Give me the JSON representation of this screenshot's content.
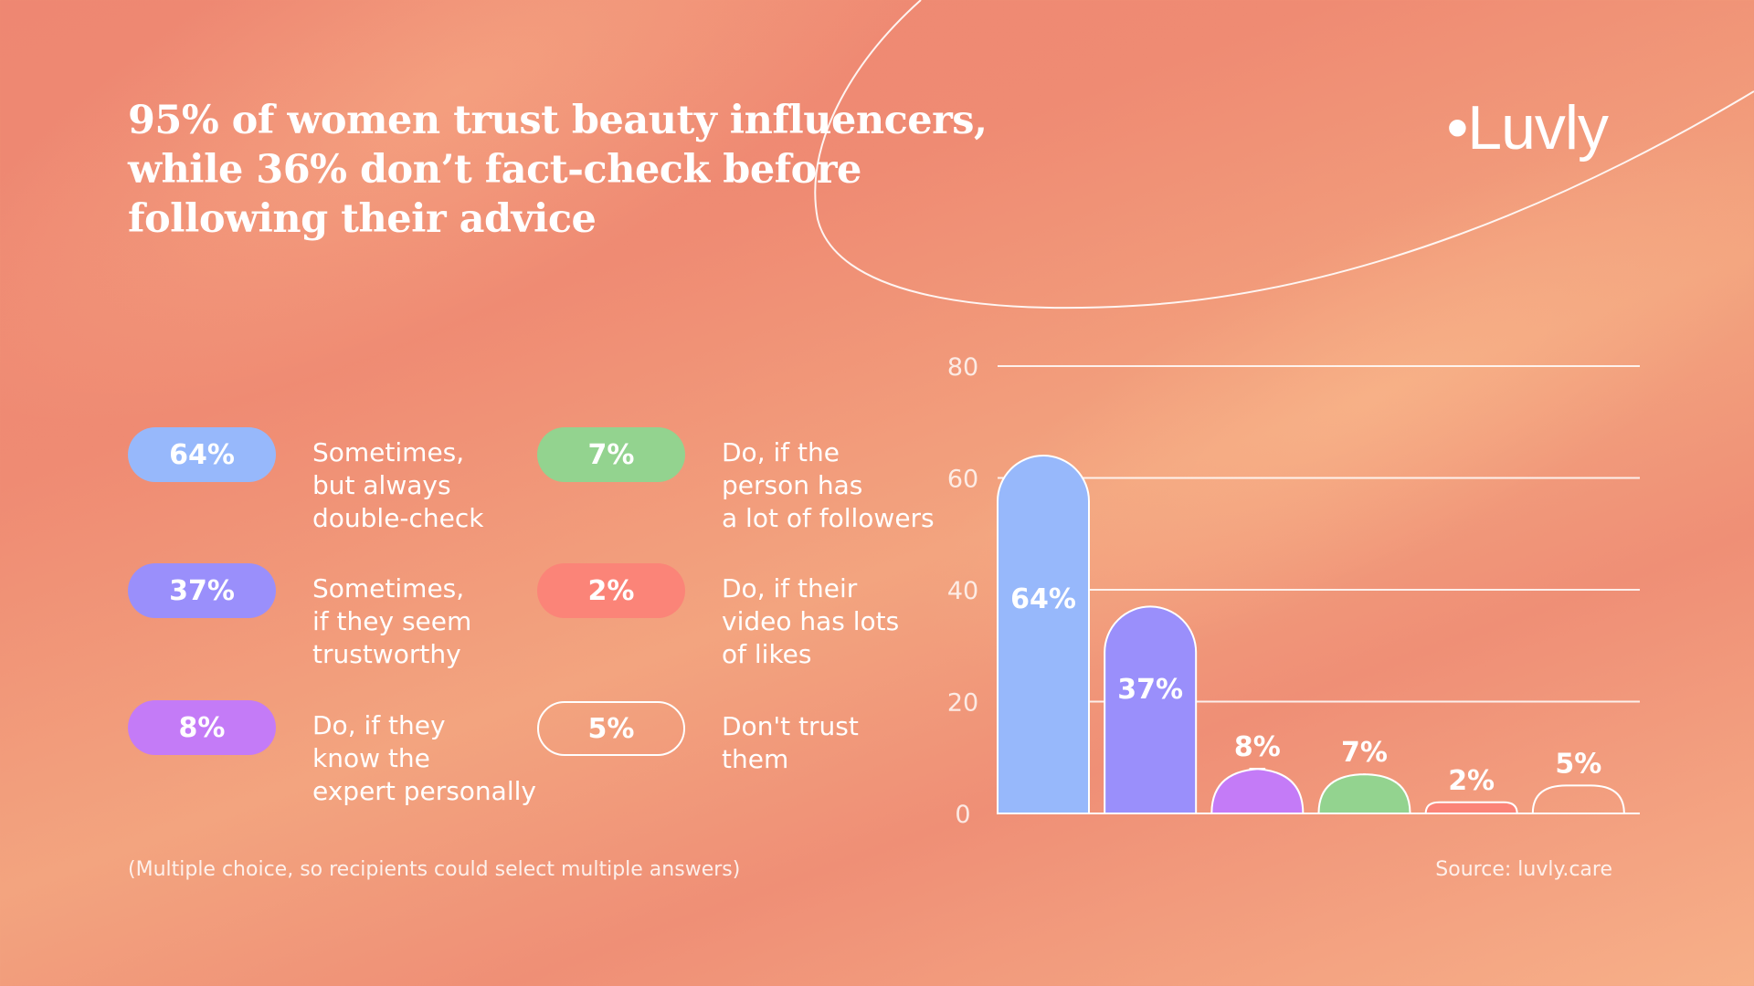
{
  "title_lines": [
    "95% of women trust beauty influencers,",
    "while 36% don’t fact-check before",
    "following their advice"
  ],
  "brand": "•Luvly",
  "legend": [
    {
      "value": "64%",
      "lines": [
        "Sometimes,",
        "but always",
        "double-check"
      ],
      "color": "#97b8fb",
      "outline": false
    },
    {
      "value": "37%",
      "lines": [
        "Sometimes,",
        "if they seem",
        "trustworthy"
      ],
      "color": "#9a8ffb",
      "outline": false
    },
    {
      "value": "8%",
      "lines": [
        "Do, if they",
        "know the",
        "expert personally"
      ],
      "color": "#c47bf7",
      "outline": false
    },
    {
      "value": "7%",
      "lines": [
        "Do, if the",
        "person has",
        "a lot of followers"
      ],
      "color": "#93d38f",
      "outline": false
    },
    {
      "value": "2%",
      "lines": [
        "Do, if their",
        "video has lots",
        "of likes"
      ],
      "color": "#fb8478",
      "outline": false
    },
    {
      "value": "5%",
      "lines": [
        "Don't trust",
        "them"
      ],
      "color": "transparent",
      "outline": true
    }
  ],
  "footnote": "(Multiple choice, so recipients could select multiple answers)",
  "source": "Source: luvly.care",
  "chart_data": {
    "type": "bar",
    "categories": [
      "Sometimes, but always double-check",
      "Sometimes, if they seem trustworthy",
      "Do, if they know the expert personally",
      "Do, if the person has a lot of followers",
      "Do, if their video has lots of likes",
      "Don't trust them"
    ],
    "values": [
      64,
      37,
      8,
      7,
      2,
      5
    ],
    "value_labels": [
      "64%",
      "37%",
      "8%",
      "7%",
      "2%",
      "5%"
    ],
    "colors": [
      "#97b8fb",
      "#9a8ffb",
      "#c47bf7",
      "#93d38f",
      "#fb8478",
      "transparent"
    ],
    "ylim": [
      0,
      80
    ],
    "yticks": [
      "0",
      "20",
      "40",
      "60",
      "80"
    ],
    "grid": true
  }
}
